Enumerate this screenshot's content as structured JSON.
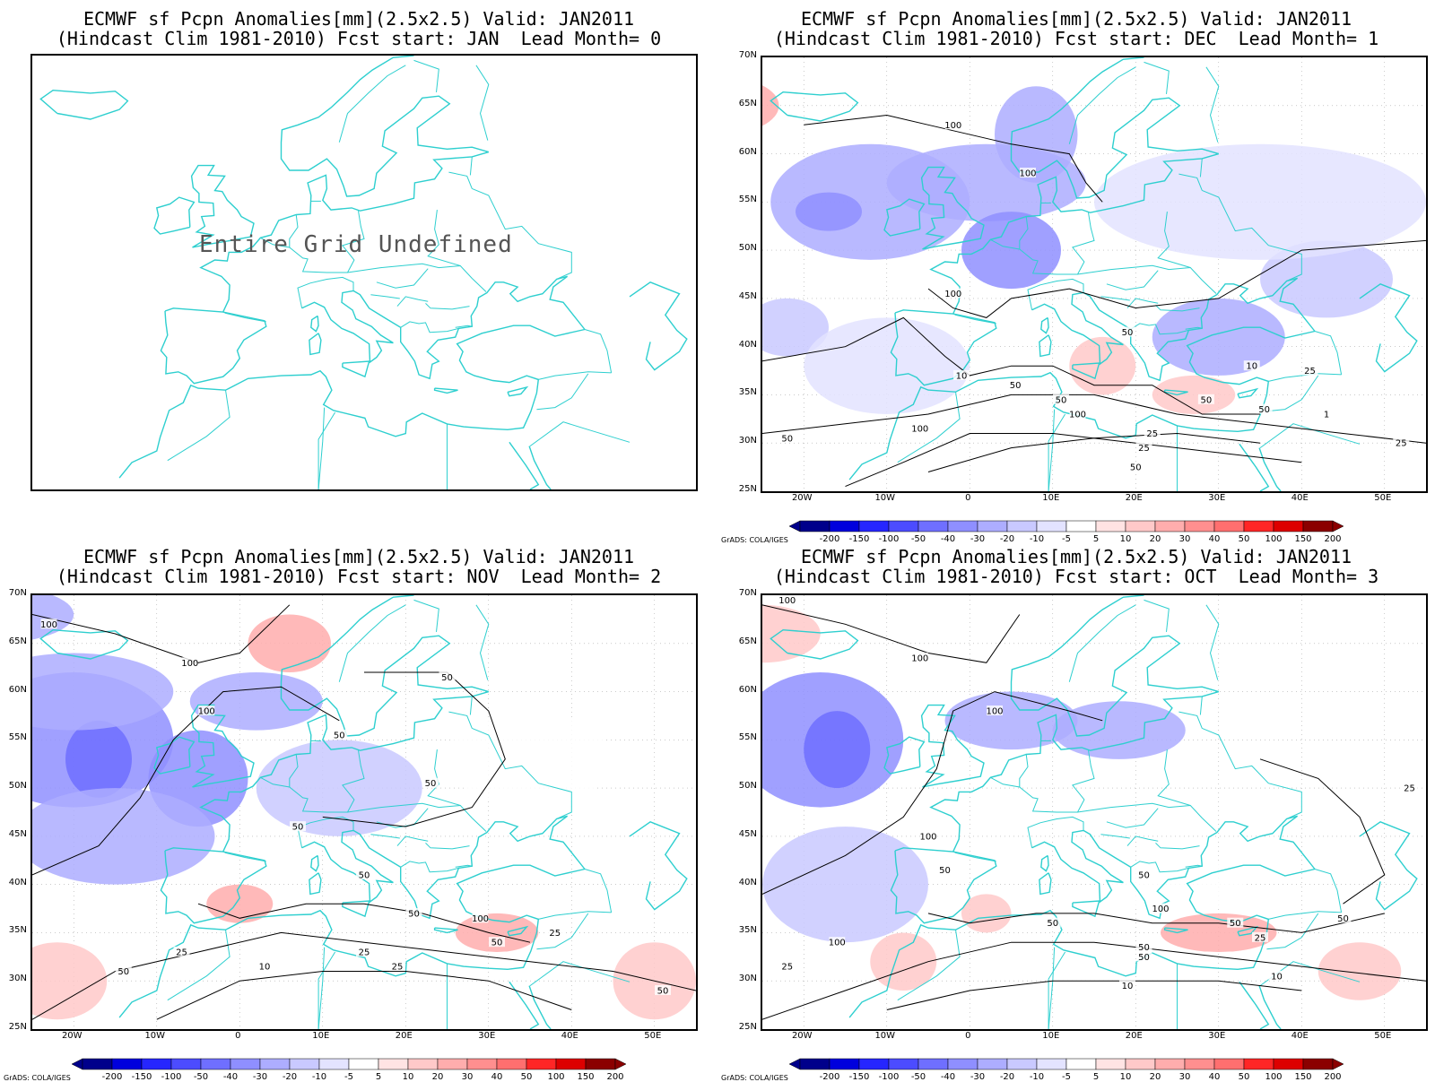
{
  "panels": [
    {
      "title_line1": "ECMWF sf Pcpn Anomalies[mm](2.5x2.5) Valid: JAN2011",
      "title_line2": "(Hindcast Clim 1981-2010) Fcst start: JAN  Lead Month= 0",
      "undefined_text": "Entire Grid Undefined",
      "has_data": false
    },
    {
      "title_line1": "ECMWF sf Pcpn Anomalies[mm](2.5x2.5) Valid: JAN2011",
      "title_line2": "(Hindcast Clim 1981-2010) Fcst start: DEC  Lead Month= 1",
      "has_data": true,
      "contour_labels": [
        "100",
        "100",
        "100",
        "50",
        "50",
        "50",
        "50",
        "100",
        "100",
        "25",
        "25",
        "50",
        "50",
        "10",
        "10",
        "25",
        "1",
        "50",
        "25"
      ]
    },
    {
      "title_line1": "ECMWF sf Pcpn Anomalies[mm](2.5x2.5) Valid: JAN2011",
      "title_line2": "(Hindcast Clim 1981-2010) Fcst start: NOV  Lead Month= 2",
      "has_data": true,
      "contour_labels": [
        "100",
        "100",
        "100",
        "50",
        "50",
        "50",
        "50",
        "50",
        "100",
        "50",
        "25",
        "10",
        "25",
        "25",
        "50",
        "50",
        "50",
        "25"
      ]
    },
    {
      "title_line1": "ECMWF sf Pcpn Anomalies[mm](2.5x2.5) Valid: JAN2011",
      "title_line2": "(Hindcast Clim 1981-2010) Fcst start: OCT  Lead Month= 3",
      "has_data": true,
      "contour_labels": [
        "100",
        "100",
        "100",
        "100",
        "50",
        "50",
        "100",
        "100",
        "50",
        "50",
        "50",
        "25",
        "50",
        "25",
        "10",
        "10",
        "25",
        "50"
      ]
    }
  ],
  "map_axes": {
    "lat_labels": [
      "70N",
      "65N",
      "60N",
      "55N",
      "50N",
      "45N",
      "40N",
      "35N",
      "30N",
      "25N"
    ],
    "lon_labels": [
      "20W",
      "10W",
      "0",
      "10E",
      "20E",
      "30E",
      "40E",
      "50E"
    ]
  },
  "colorbar": {
    "labels": [
      "-200",
      "-150",
      "-100",
      "-50",
      "-40",
      "-30",
      "-20",
      "-10",
      "-5",
      "5",
      "10",
      "20",
      "30",
      "40",
      "50",
      "100",
      "150",
      "200"
    ],
    "colors": [
      "#00008b",
      "#0000dd",
      "#2626ff",
      "#4c4cff",
      "#6f6fff",
      "#8f8fff",
      "#adadff",
      "#c9c9ff",
      "#e3e3ff",
      "#ffffff",
      "#ffe3e3",
      "#ffc9c9",
      "#ffadad",
      "#ff8f8f",
      "#ff6f6f",
      "#ff2626",
      "#dd0000",
      "#8b0000"
    ],
    "credit": "GrADS: COLA/IGES"
  },
  "colors": {
    "coastline": "#2ecfcf",
    "contour": "#000000",
    "grid": "#aaaaaa"
  }
}
